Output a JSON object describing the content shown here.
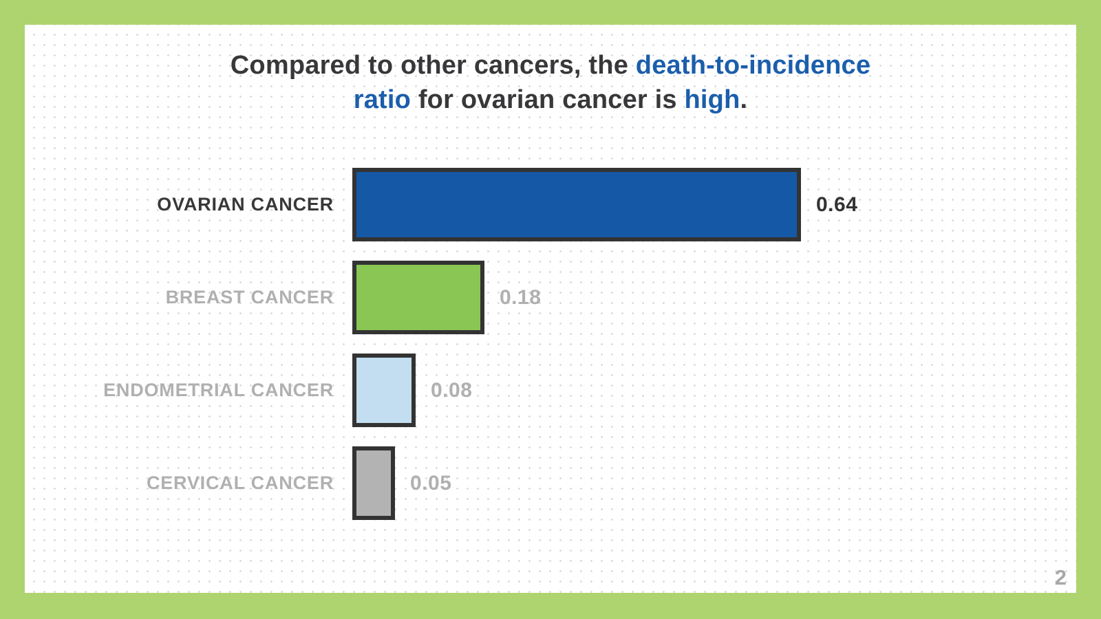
{
  "page": {
    "page_number": "2",
    "frame_color": "#aed46f",
    "card_background": "#ffffff",
    "dot_pattern_color": "#d9d9dd"
  },
  "title": {
    "full_text": "Compared to other cancers, the death-to-incidence ratio for ovarian cancer is high.",
    "text_color": "#38383a",
    "accent_color": "#1b5eac",
    "lines": [
      [
        {
          "text": "Compared to other cancers, the ",
          "accent": false
        },
        {
          "text": "death-to-incidence",
          "accent": true
        }
      ],
      [
        {
          "text": "ratio",
          "accent": true
        },
        {
          "text": " for ovarian cancer is ",
          "accent": false
        },
        {
          "text": "high",
          "accent": true
        },
        {
          "text": ".",
          "accent": false
        }
      ]
    ]
  },
  "chart_data": {
    "type": "bar",
    "orientation": "horizontal",
    "title": "Compared to other cancers, the death-to-incidence ratio for ovarian cancer is high.",
    "categories": [
      "OVARIAN CANCER",
      "BREAST CANCER",
      "ENDOMETRIAL CANCER",
      "CERVICAL CANCER"
    ],
    "values": [
      0.64,
      0.18,
      0.08,
      0.05
    ],
    "value_labels": [
      "0.64",
      "0.18",
      "0.08",
      "0.05"
    ],
    "bar_colors": [
      "#1558a5",
      "#8ac653",
      "#c2def0",
      "#b3b3b3"
    ],
    "bar_border_color": "#333333",
    "emphasized_index": 0,
    "emphasized_text_color": "#38383a",
    "muted_text_color": "#b0b0b0",
    "xlim": [
      0,
      0.64
    ],
    "grid": false,
    "legend": false
  }
}
